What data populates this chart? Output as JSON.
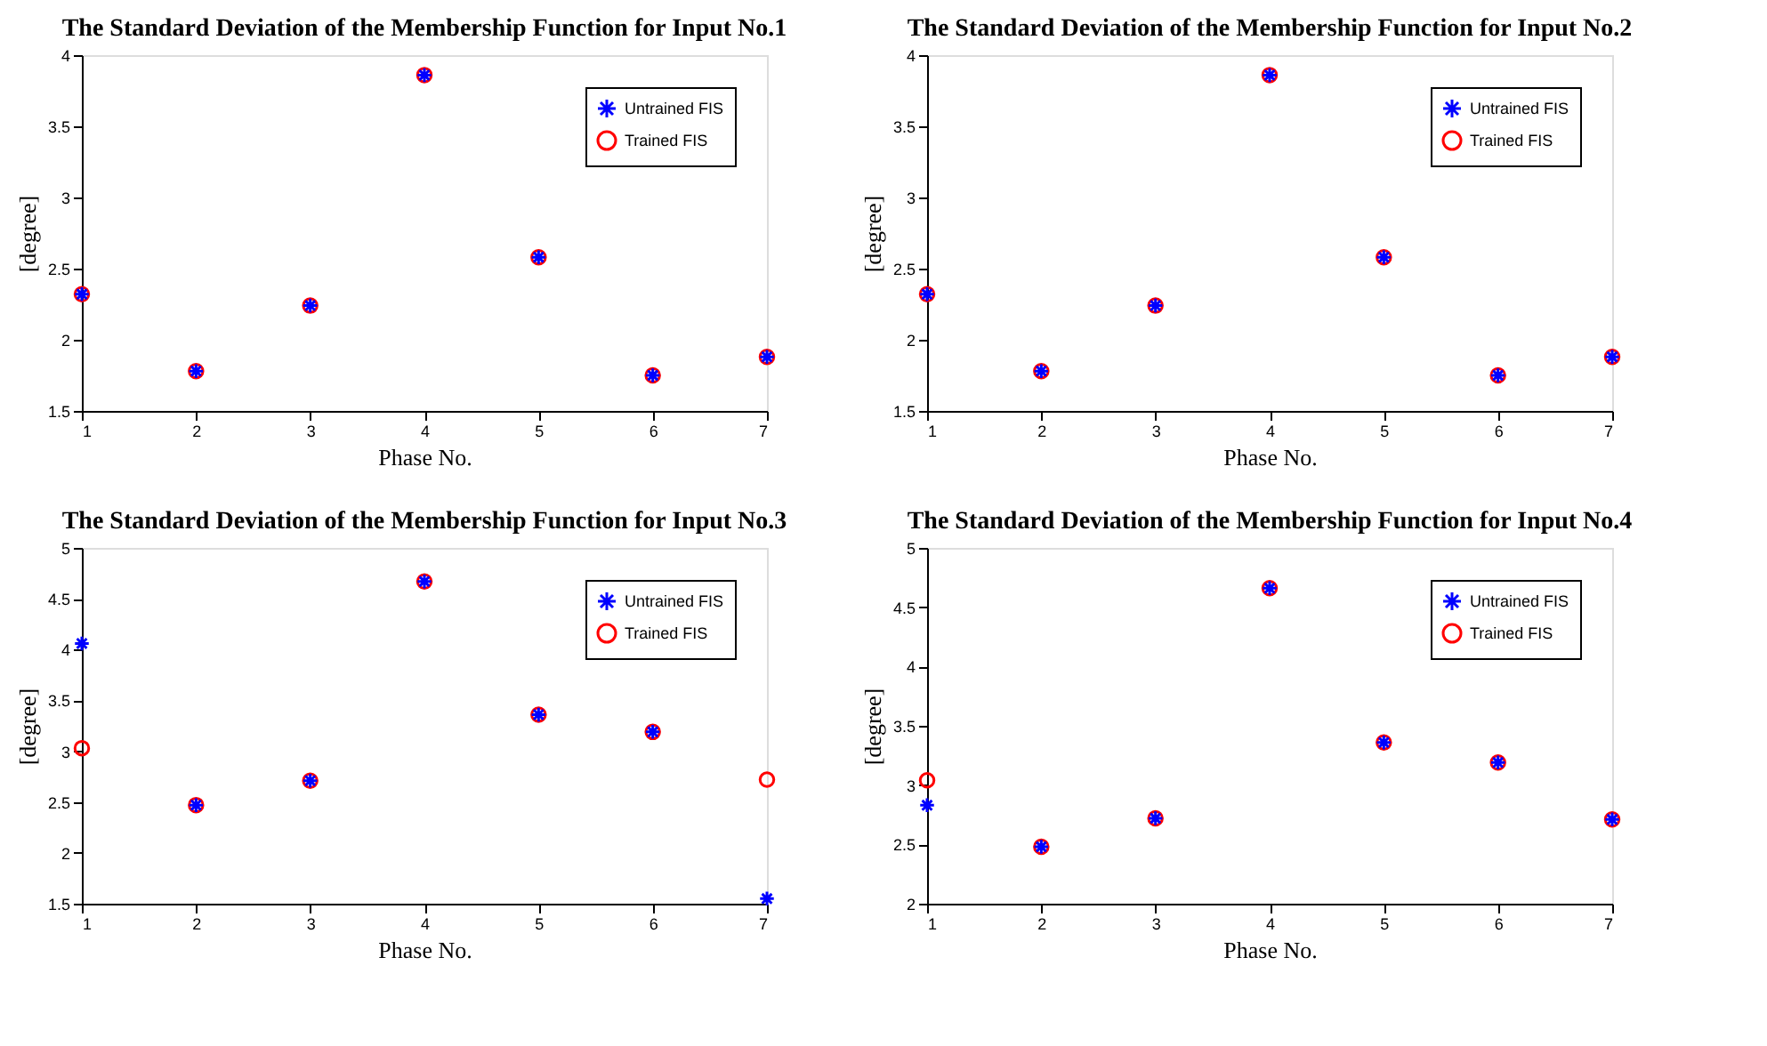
{
  "chart_data": [
    {
      "type": "scatter",
      "title": "The Standard Deviation of the Membership Function for Input No.1",
      "xlabel": "Phase No.",
      "ylabel": "[degree]",
      "x": [
        1,
        2,
        3,
        4,
        5,
        6,
        7
      ],
      "xlim": [
        1,
        7
      ],
      "xticks": [
        1,
        2,
        3,
        4,
        5,
        6,
        7
      ],
      "ylim": [
        1.5,
        4
      ],
      "yticks": [
        1.5,
        2,
        2.5,
        3,
        3.5,
        4
      ],
      "grid": false,
      "legend": "top right",
      "series": [
        {
          "name": "Untrained FIS",
          "color": "#0000ff",
          "marker": "cross",
          "values": [
            2.32,
            1.78,
            2.24,
            3.86,
            2.58,
            1.75,
            1.88
          ]
        },
        {
          "name": "Trained FIS",
          "color": "#ff0000",
          "marker": "circle",
          "values": [
            2.32,
            1.78,
            2.24,
            3.86,
            2.58,
            1.75,
            1.88
          ]
        }
      ]
    },
    {
      "type": "scatter",
      "title": "The Standard Deviation of the Membership Function for Input No.2",
      "xlabel": "Phase No.",
      "ylabel": "[degree]",
      "x": [
        1,
        2,
        3,
        4,
        5,
        6,
        7
      ],
      "xlim": [
        1,
        7
      ],
      "xticks": [
        1,
        2,
        3,
        4,
        5,
        6,
        7
      ],
      "ylim": [
        1.5,
        4
      ],
      "yticks": [
        1.5,
        2,
        2.5,
        3,
        3.5,
        4
      ],
      "grid": false,
      "legend": "top right",
      "series": [
        {
          "name": "Untrained FIS",
          "color": "#0000ff",
          "marker": "cross",
          "values": [
            2.32,
            1.78,
            2.24,
            3.86,
            2.58,
            1.75,
            1.88
          ]
        },
        {
          "name": "Trained FIS",
          "color": "#ff0000",
          "marker": "circle",
          "values": [
            2.32,
            1.78,
            2.24,
            3.86,
            2.58,
            1.75,
            1.88
          ]
        }
      ]
    },
    {
      "type": "scatter",
      "title": "The Standard Deviation of the Membership Function for Input No.3",
      "xlabel": "Phase No.",
      "ylabel": "[degree]",
      "x": [
        1,
        2,
        3,
        4,
        5,
        6,
        7
      ],
      "xlim": [
        1,
        7
      ],
      "xticks": [
        1,
        2,
        3,
        4,
        5,
        6,
        7
      ],
      "ylim": [
        1.5,
        5
      ],
      "yticks": [
        1.5,
        2,
        2.5,
        3,
        3.5,
        4,
        4.5,
        5
      ],
      "grid": false,
      "legend": "top right",
      "series": [
        {
          "name": "Untrained FIS",
          "color": "#0000ff",
          "marker": "cross",
          "values": [
            4.06,
            2.47,
            2.71,
            4.67,
            3.36,
            3.19,
            1.55
          ]
        },
        {
          "name": "Trained FIS",
          "color": "#ff0000",
          "marker": "circle",
          "values": [
            3.03,
            2.47,
            2.71,
            4.67,
            3.36,
            3.19,
            2.72
          ]
        }
      ]
    },
    {
      "type": "scatter",
      "title": "The Standard Deviation of the Membership Function for Input No.4",
      "xlabel": "Phase No.",
      "ylabel": "[degree]",
      "x": [
        1,
        2,
        3,
        4,
        5,
        6,
        7
      ],
      "xlim": [
        1,
        7
      ],
      "xticks": [
        1,
        2,
        3,
        4,
        5,
        6,
        7
      ],
      "ylim": [
        2,
        5
      ],
      "yticks": [
        2,
        2.5,
        3,
        3.5,
        4,
        4.5,
        5
      ],
      "grid": false,
      "legend": "top right",
      "series": [
        {
          "name": "Untrained FIS",
          "color": "#0000ff",
          "marker": "cross",
          "values": [
            2.83,
            2.48,
            2.72,
            4.66,
            3.36,
            3.19,
            2.71
          ]
        },
        {
          "name": "Trained FIS",
          "color": "#ff0000",
          "marker": "circle",
          "values": [
            3.04,
            2.48,
            2.72,
            4.66,
            3.36,
            3.19,
            2.71
          ]
        }
      ]
    }
  ]
}
